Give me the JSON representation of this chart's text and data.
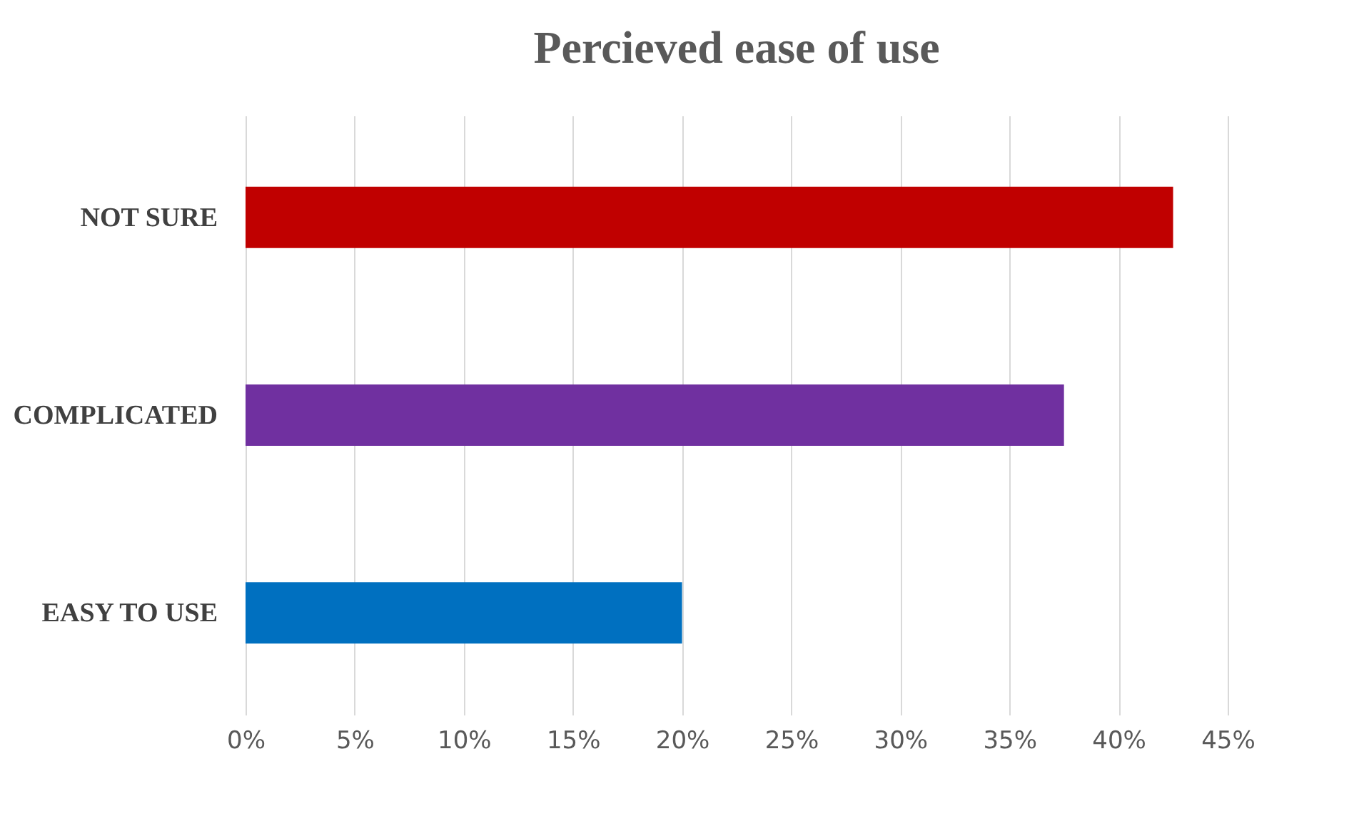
{
  "chart_data": {
    "type": "bar",
    "orientation": "horizontal",
    "title": "Percieved ease of use",
    "categories": [
      "NOT SURE",
      "COMPLICATED",
      "EASY TO USE"
    ],
    "values": [
      42.5,
      37.5,
      20
    ],
    "colors": [
      "#c00000",
      "#7030a0",
      "#0070c0"
    ],
    "xlim": [
      0,
      45
    ],
    "xticks": [
      {
        "value": 0,
        "label": "0%"
      },
      {
        "value": 5,
        "label": "5%"
      },
      {
        "value": 10,
        "label": "10%"
      },
      {
        "value": 15,
        "label": "15%"
      },
      {
        "value": 20,
        "label": "20%"
      },
      {
        "value": 25,
        "label": "25%"
      },
      {
        "value": 30,
        "label": "30%"
      },
      {
        "value": 35,
        "label": "35%"
      },
      {
        "value": 40,
        "label": "40%"
      },
      {
        "value": 45,
        "label": "45%"
      }
    ],
    "grid": "x"
  }
}
